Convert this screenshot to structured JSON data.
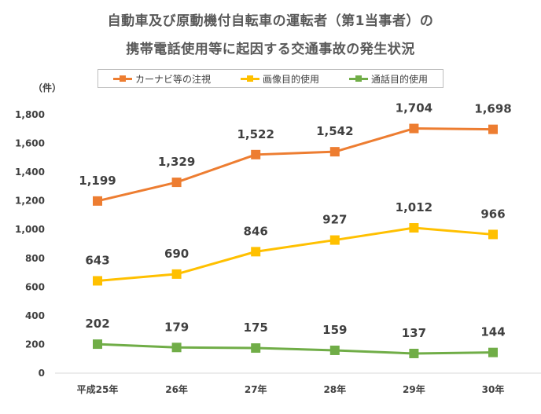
{
  "chart_data": {
    "type": "line",
    "title": "自動車及び原動機付自転車の運転者（第1当事者）の",
    "subtitle": "携帯電話使用等に起因する交通事故の発生状況",
    "y_unit_label": "（件）",
    "categories": [
      "平成25年",
      "26年",
      "27年",
      "28年",
      "29年",
      "30年"
    ],
    "ylim": [
      0,
      1800
    ],
    "y_ticks": [
      0,
      200,
      400,
      600,
      800,
      1000,
      1200,
      1400,
      1600,
      1800
    ],
    "y_tick_labels": [
      "0",
      "200",
      "400",
      "600",
      "800",
      "1,000",
      "1,200",
      "1,400",
      "1,600",
      "1,800"
    ],
    "grid": false,
    "legend_position": "top-center",
    "series": [
      {
        "name": "カーナビ等の注視",
        "color": "#ED7D31",
        "values": [
          1199,
          1329,
          1522,
          1542,
          1704,
          1698
        ],
        "labels": [
          "1,199",
          "1,329",
          "1,522",
          "1,542",
          "1,704",
          "1,698"
        ]
      },
      {
        "name": "画像目的使用",
        "color": "#FFC000",
        "values": [
          643,
          690,
          846,
          927,
          1012,
          966
        ],
        "labels": [
          "643",
          "690",
          "846",
          "927",
          "1,012",
          "966"
        ]
      },
      {
        "name": "通話目的使用",
        "color": "#70AD47",
        "values": [
          202,
          179,
          175,
          159,
          137,
          144
        ],
        "labels": [
          "202",
          "179",
          "175",
          "159",
          "137",
          "144"
        ]
      }
    ]
  }
}
